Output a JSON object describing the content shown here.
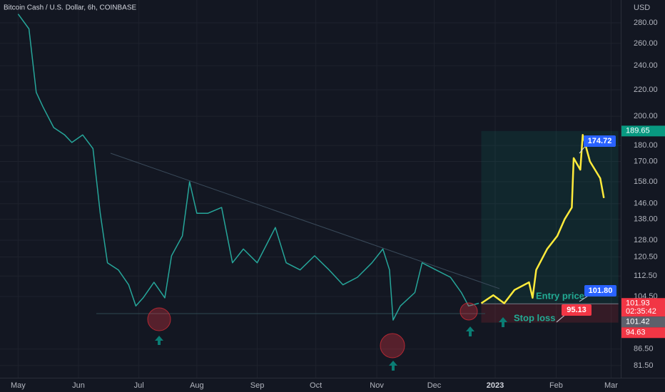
{
  "chart_data": {
    "type": "line",
    "title": "Bitcoin Cash / U.S. Dollar, 6h, COINBASE",
    "currency": "USD",
    "log_scale": true,
    "grid": true,
    "xlim": [
      -0.3,
      9.98
    ],
    "ylim": [
      78,
      304
    ],
    "xticks": [
      {
        "value": 0,
        "label": "May"
      },
      {
        "value": 1.0,
        "label": "Jun"
      },
      {
        "value": 2.0,
        "label": "Jul"
      },
      {
        "value": 2.96,
        "label": "Aug"
      },
      {
        "value": 3.96,
        "label": "Sep"
      },
      {
        "value": 4.93,
        "label": "Oct"
      },
      {
        "value": 5.94,
        "label": "Nov"
      },
      {
        "value": 6.89,
        "label": "Dec"
      },
      {
        "value": 7.9,
        "label": "2023"
      },
      {
        "value": 8.91,
        "label": "Feb"
      },
      {
        "value": 9.82,
        "label": "Mar"
      }
    ],
    "yticks": [
      {
        "value": 280,
        "label": "280.00"
      },
      {
        "value": 260,
        "label": "260.00"
      },
      {
        "value": 240,
        "label": "240.00"
      },
      {
        "value": 220,
        "label": "220.00"
      },
      {
        "value": 200,
        "label": "200.00"
      },
      {
        "value": 180,
        "label": "180.00"
      },
      {
        "value": 170,
        "label": "170.00"
      },
      {
        "value": 158,
        "label": "158.00"
      },
      {
        "value": 146,
        "label": "146.00"
      },
      {
        "value": 138,
        "label": "138.00"
      },
      {
        "value": 128,
        "label": "128.00"
      },
      {
        "value": 120.5,
        "label": "120.50"
      },
      {
        "value": 112.5,
        "label": "112.50"
      },
      {
        "value": 104.5,
        "label": "104.50"
      },
      {
        "value": 86.5,
        "label": "86.50"
      },
      {
        "value": 81.5,
        "label": "81.50"
      }
    ],
    "series": [
      {
        "color": "#26a69a",
        "x": [
          0,
          0.18,
          0.3,
          0.41,
          0.59,
          0.77,
          0.89,
          1.07,
          1.24,
          1.36,
          1.48,
          1.66,
          1.83,
          1.95,
          2.07,
          2.25,
          2.43,
          2.54,
          2.72,
          2.84,
          2.96,
          3.14,
          3.37,
          3.55,
          3.73,
          3.96,
          4.26,
          4.44,
          4.67,
          4.91,
          5.15,
          5.38,
          5.62,
          5.86,
          6.04,
          6.15,
          6.21,
          6.33,
          6.57,
          6.69,
          6.92,
          7.16,
          7.34,
          7.46,
          7.63
        ],
        "values": [
          289,
          274,
          218,
          207,
          192,
          187,
          182,
          187,
          178,
          141,
          118,
          115,
          109,
          101,
          104,
          110,
          104,
          121,
          130,
          158,
          141,
          141,
          144,
          118,
          124,
          118,
          134,
          118,
          115,
          121,
          115,
          109,
          112,
          118,
          124,
          115,
          96,
          101,
          106,
          118,
          115,
          112,
          106,
          101,
          102
        ]
      },
      {
        "color": "#ffeb3b",
        "x": [
          7.67,
          7.87,
          8.05,
          8.22,
          8.46,
          8.52,
          8.58,
          8.76,
          8.93,
          9.05,
          9.17,
          9.2,
          9.31,
          9.35,
          9.47,
          9.64,
          9.7
        ],
        "values": [
          102,
          105,
          102,
          107,
          110,
          104,
          115,
          124,
          130,
          138,
          144,
          172,
          165,
          187,
          170,
          160,
          149
        ]
      }
    ],
    "position": {
      "x": [
        7.67,
        9.94
      ],
      "target": 189.65,
      "entry": {
        "value": 101.8,
        "label": "101.80"
      },
      "stop": 95.13,
      "peak": 174.72,
      "entry_text": "Entry price",
      "stop_text": "Stop loss"
    },
    "price_labels": [
      {
        "value": 189.65,
        "color": "#089981"
      },
      {
        "value": 101.93,
        "label": "101.93",
        "countdown": "02:35:42",
        "color": "#f23645"
      },
      {
        "value": 101.42,
        "color": "#5d606b"
      },
      {
        "value": 94.63,
        "color": "#f23645"
      }
    ]
  }
}
